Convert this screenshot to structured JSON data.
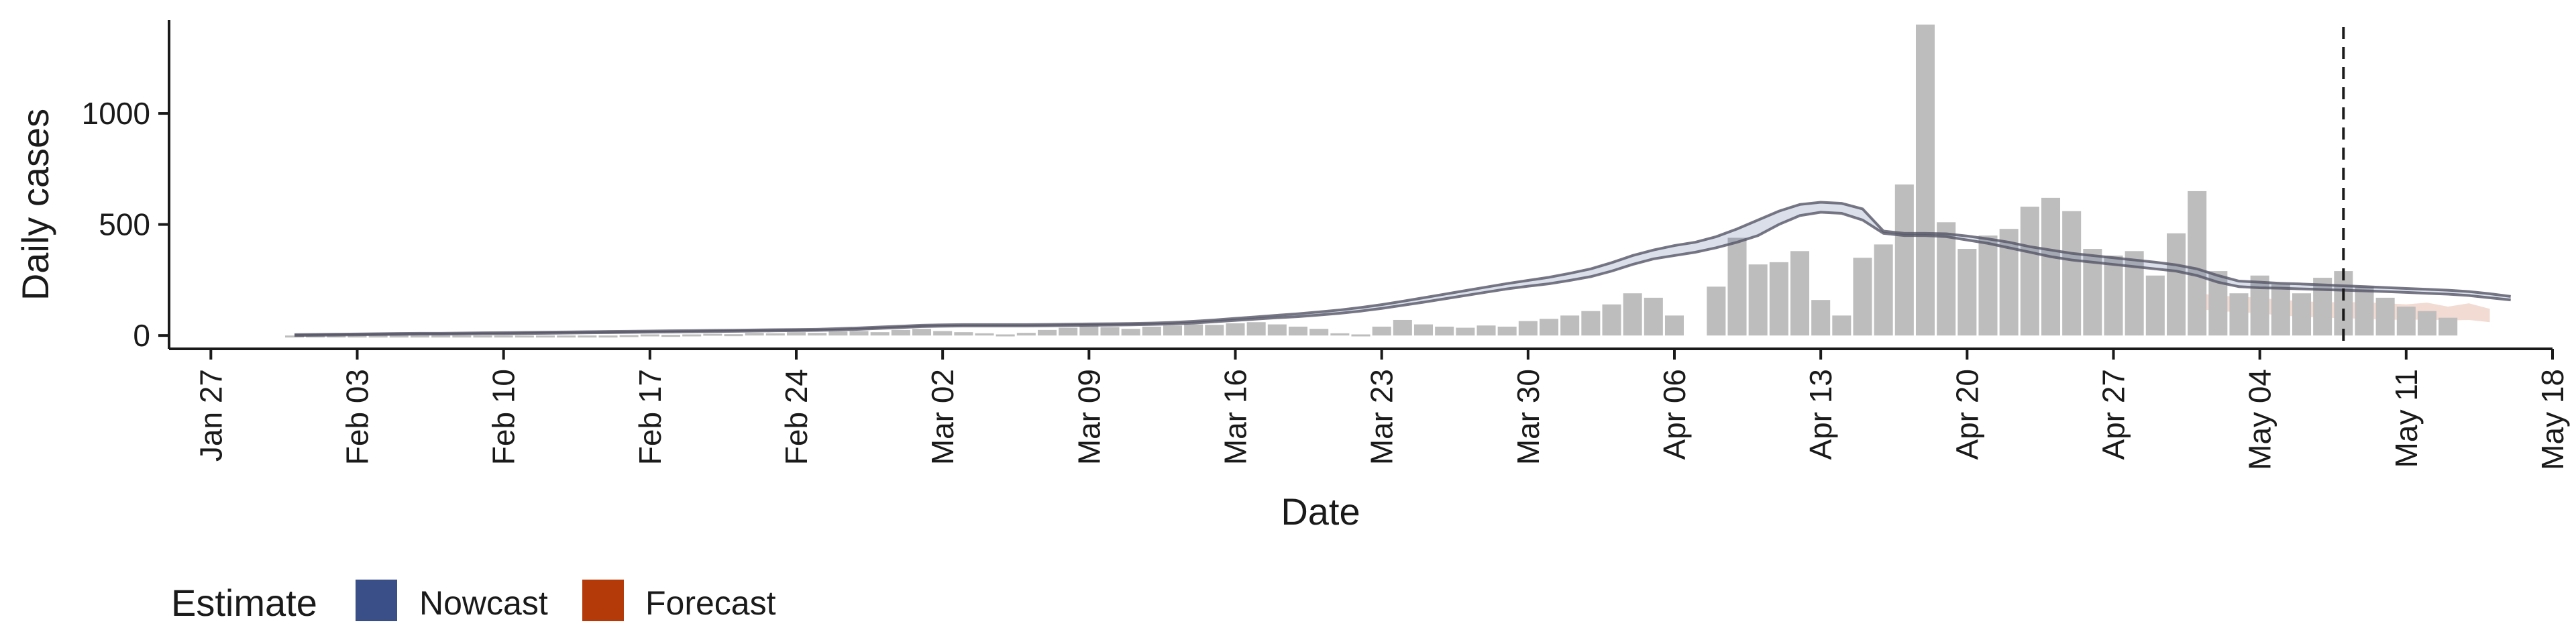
{
  "chart_data": {
    "type": "bar",
    "title": "",
    "xlabel": "Date",
    "ylabel": "Daily cases",
    "x_axis": {
      "type": "date",
      "range": [
        "2020-01-25",
        "2020-05-18"
      ],
      "tick_dates": [
        "2020-01-27",
        "2020-02-03",
        "2020-02-10",
        "2020-02-17",
        "2020-02-24",
        "2020-03-02",
        "2020-03-09",
        "2020-03-16",
        "2020-03-23",
        "2020-03-30",
        "2020-04-06",
        "2020-04-13",
        "2020-04-20",
        "2020-04-27",
        "2020-05-04",
        "2020-05-11",
        "2020-05-18"
      ],
      "tick_labels": [
        "Jan 27",
        "Feb 03",
        "Feb 10",
        "Feb 17",
        "Feb 24",
        "Mar 02",
        "Mar 09",
        "Mar 16",
        "Mar 23",
        "Mar 30",
        "Apr 06",
        "Apr 13",
        "Apr 20",
        "Apr 27",
        "May 04",
        "May 11",
        "May 18"
      ]
    },
    "y_axis": {
      "range": [
        -60,
        1420
      ],
      "ticks": [
        0,
        500,
        1000
      ],
      "tick_labels": [
        "0",
        "500",
        "1000"
      ]
    },
    "grid": false,
    "legend": {
      "placement": "bottom-left",
      "title": "Estimate",
      "items": [
        {
          "label": "Nowcast",
          "color": "#3a4f88"
        },
        {
          "label": "Forecast",
          "color": "#b53a0a"
        }
      ]
    },
    "vline": {
      "date": "2020-05-08",
      "style": "dashed"
    },
    "colors": {
      "bars": "#bdbdbd",
      "nowcast": "#3a4f88",
      "forecast": "#b53a0a",
      "outline": "#555566"
    },
    "daily_cases": {
      "start_date": "2020-01-31",
      "values": [
        0,
        0,
        0,
        0,
        0,
        0,
        0,
        0,
        0,
        0,
        0,
        0,
        0,
        0,
        0,
        0,
        2,
        5,
        3,
        5,
        8,
        6,
        12,
        10,
        15,
        12,
        18,
        20,
        15,
        25,
        30,
        20,
        15,
        10,
        5,
        12,
        25,
        35,
        45,
        38,
        30,
        40,
        45,
        50,
        48,
        55,
        60,
        50,
        40,
        30,
        10,
        5,
        40,
        70,
        50,
        40,
        35,
        45,
        40,
        65,
        75,
        90,
        110,
        140,
        190,
        170,
        90,
        0,
        220,
        440,
        320,
        330,
        380,
        160,
        90,
        350,
        410,
        680,
        1400,
        510,
        390,
        450,
        480,
        580,
        620,
        560,
        390,
        360,
        380,
        270,
        460,
        650,
        290,
        190,
        270,
        230,
        190,
        260,
        290,
        220,
        170,
        130,
        110,
        80
      ],
      "missing_indices": [
        67
      ]
    },
    "nowcast_band": {
      "start_date": "2020-01-31",
      "lower": [
        0,
        1,
        2,
        3,
        4,
        5,
        6,
        6,
        7,
        8,
        8,
        9,
        10,
        11,
        12,
        13,
        14,
        15,
        16,
        17,
        18,
        19,
        20,
        21,
        22,
        23,
        25,
        28,
        32,
        36,
        40,
        42,
        43,
        43,
        43,
        43,
        44,
        45,
        46,
        47,
        48,
        50,
        52,
        56,
        62,
        68,
        74,
        80,
        85,
        92,
        100,
        110,
        122,
        136,
        150,
        165,
        180,
        195,
        210,
        222,
        233,
        248,
        265,
        290,
        320,
        345,
        360,
        375,
        395,
        420,
        450,
        500,
        540,
        555,
        550,
        520,
        460,
        450,
        450,
        445,
        430,
        415,
        395,
        375,
        355,
        340,
        330,
        320,
        310,
        300,
        290,
        270,
        240,
        220,
        215,
        213,
        210,
        207,
        204,
        201,
        198,
        194,
        190,
        186,
        180,
        170,
        160
      ],
      "upper": [
        4,
        5,
        6,
        7,
        8,
        9,
        10,
        10,
        11,
        12,
        13,
        14,
        15,
        16,
        17,
        18,
        19,
        20,
        21,
        22,
        23,
        24,
        25,
        26,
        27,
        28,
        31,
        34,
        38,
        42,
        46,
        48,
        49,
        49,
        49,
        49,
        50,
        51,
        52,
        53,
        54,
        56,
        59,
        64,
        70,
        77,
        84,
        91,
        98,
        106,
        115,
        126,
        139,
        154,
        170,
        186,
        202,
        218,
        234,
        248,
        262,
        280,
        300,
        328,
        360,
        385,
        405,
        420,
        445,
        480,
        520,
        560,
        590,
        600,
        595,
        570,
        470,
        460,
        460,
        458,
        448,
        435,
        420,
        400,
        385,
        370,
        360,
        350,
        340,
        330,
        318,
        300,
        270,
        245,
        240,
        235,
        232,
        228,
        224,
        220,
        216,
        212,
        208,
        204,
        198,
        188,
        176
      ]
    },
    "forecast_band": {
      "start_date": "2020-05-01",
      "lower": [
        120,
        110,
        105,
        100,
        90,
        85,
        80,
        78,
        75,
        72,
        70,
        72,
        68,
        70,
        60
      ],
      "upper": [
        190,
        180,
        175,
        170,
        160,
        155,
        150,
        150,
        150,
        145,
        140,
        148,
        130,
        145,
        120
      ]
    }
  }
}
